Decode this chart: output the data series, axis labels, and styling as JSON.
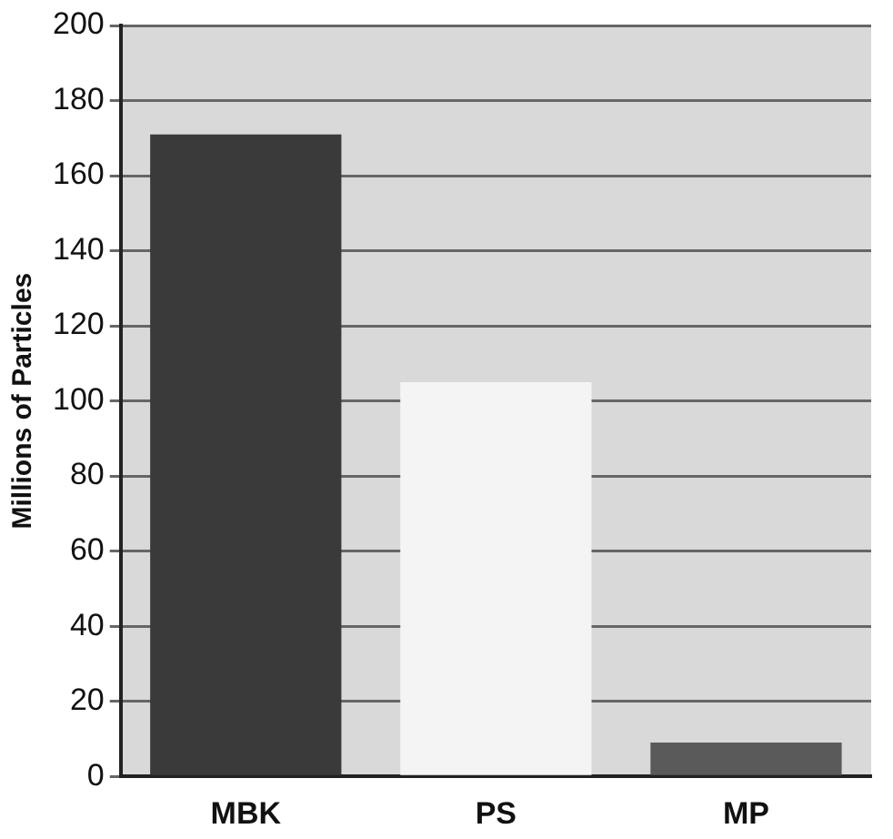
{
  "chart_data": {
    "type": "bar",
    "ylabel": "Millions of Particles",
    "categories": [
      "MBK",
      "PS",
      "MP"
    ],
    "values": [
      171,
      105,
      9
    ],
    "colors": [
      "#3a3a3a",
      "#f4f4f4",
      "#5a5a5a"
    ],
    "ylim": [
      0,
      200
    ],
    "yticks": [
      0,
      20,
      40,
      60,
      80,
      100,
      120,
      140,
      160,
      180,
      200
    ],
    "grid": "y"
  }
}
